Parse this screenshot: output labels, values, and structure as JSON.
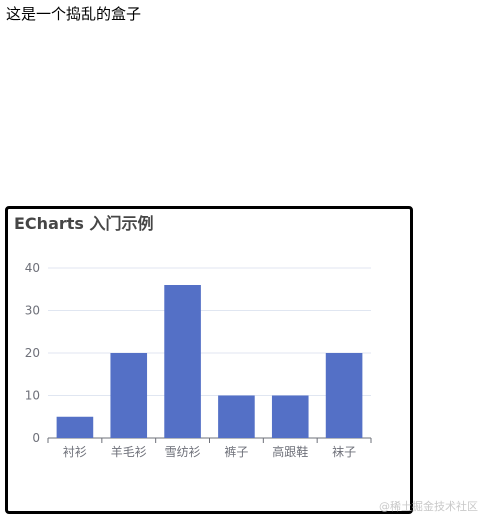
{
  "page": {
    "heading_text": "这是一个捣乱的盒子"
  },
  "chart_data": {
    "type": "bar",
    "title": "ECharts 入门示例",
    "categories": [
      "衬衫",
      "羊毛衫",
      "雪纺衫",
      "裤子",
      "高跟鞋",
      "袜子"
    ],
    "values": [
      5,
      20,
      36,
      10,
      10,
      20
    ],
    "ylim": [
      0,
      40
    ],
    "y_ticks": [
      0,
      10,
      20,
      30,
      40
    ],
    "bar_color": "#5470c6",
    "grid": true,
    "legend": null
  },
  "watermark": "@稀土掘金技术社区"
}
